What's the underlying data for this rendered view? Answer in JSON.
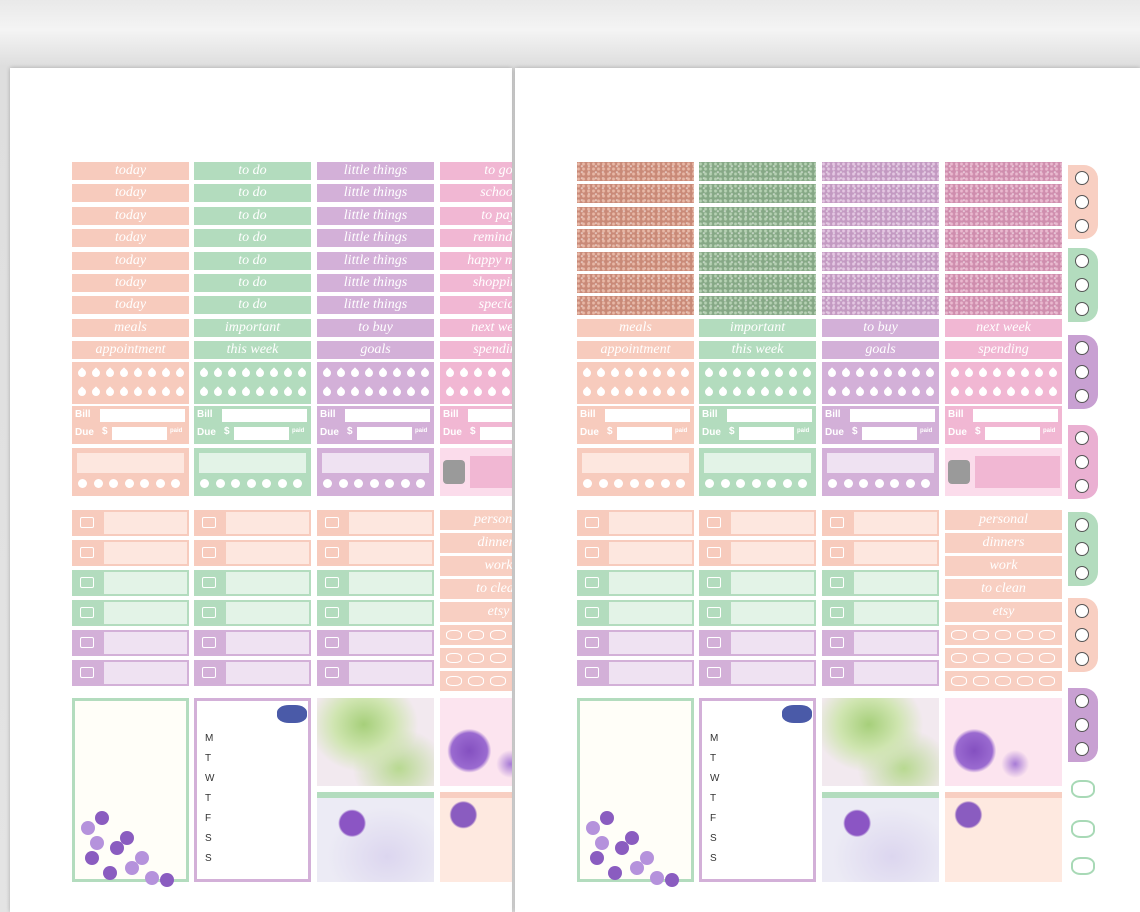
{
  "sheets": [
    {
      "columns": [
        {
          "labels": [
            "today",
            "today",
            "today",
            "today",
            "today",
            "today",
            "today",
            "meals",
            "appointment"
          ]
        },
        {
          "labels": [
            "to do",
            "to do",
            "to do",
            "to do",
            "to do",
            "to do",
            "to do",
            "important",
            "this week"
          ]
        },
        {
          "labels": [
            "little things",
            "little things",
            "little things",
            "little things",
            "little things",
            "little things",
            "little things",
            "to buy",
            "goals"
          ]
        },
        {
          "labels": [
            "to go",
            "school",
            "to pay",
            "reminder",
            "happy mail",
            "shopping",
            "special",
            "next week",
            "spending"
          ]
        }
      ]
    },
    {
      "columns": [
        {
          "labels": [
            "meals",
            "appointment"
          ]
        },
        {
          "labels": [
            "important",
            "this week"
          ]
        },
        {
          "labels": [
            "to buy",
            "goals"
          ]
        },
        {
          "labels": [
            "next week",
            "spending"
          ]
        }
      ]
    }
  ],
  "bill": {
    "bill": "Bill",
    "due": "Due",
    "dollar": "$",
    "paid": "paid"
  },
  "weekdays": [
    "M",
    "T",
    "W",
    "T",
    "F",
    "S",
    "S"
  ],
  "side_labels": [
    "personal",
    "dinners",
    "work",
    "to clean",
    "etsy"
  ]
}
